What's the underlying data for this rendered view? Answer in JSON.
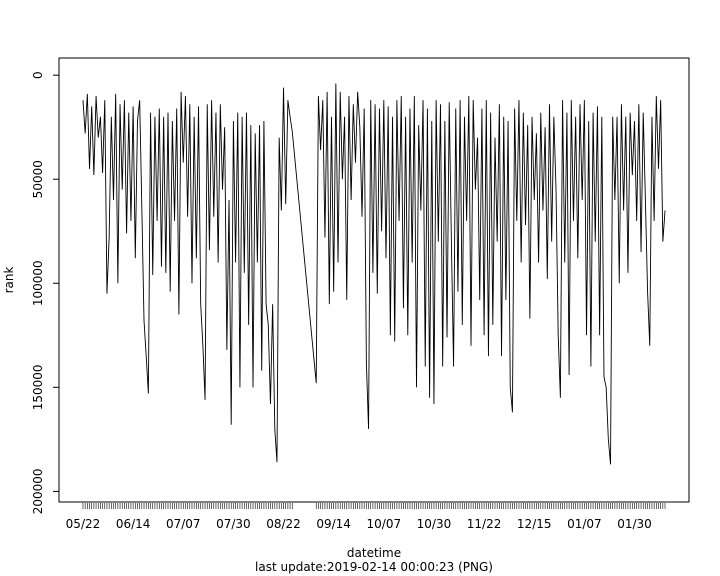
{
  "chart_data": {
    "type": "line",
    "x_label": "datetime",
    "y_label": "rank",
    "caption": "last update:2019-02-14 00:00:23 (PNG)",
    "x": [
      "05/22",
      "05/23",
      "05/24",
      "05/25",
      "05/26",
      "05/27",
      "05/28",
      "05/29",
      "05/30",
      "05/31",
      "06/01",
      "06/02",
      "06/03",
      "06/04",
      "06/05",
      "06/06",
      "06/07",
      "06/08",
      "06/09",
      "06/10",
      "06/11",
      "06/12",
      "06/13",
      "06/14",
      "06/15",
      "06/16",
      "06/17",
      "06/18",
      "06/19",
      "06/20",
      "06/21",
      "06/22",
      "06/23",
      "06/24",
      "06/25",
      "06/26",
      "06/27",
      "06/28",
      "06/29",
      "06/30",
      "07/01",
      "07/02",
      "07/03",
      "07/04",
      "07/05",
      "07/06",
      "07/07",
      "07/08",
      "07/09",
      "07/10",
      "07/11",
      "07/12",
      "07/13",
      "07/14",
      "07/15",
      "07/16",
      "07/17",
      "07/18",
      "07/19",
      "07/20",
      "07/21",
      "07/22",
      "07/23",
      "07/24",
      "07/25",
      "07/26",
      "07/27",
      "07/28",
      "07/29",
      "07/30",
      "07/31",
      "08/01",
      "08/02",
      "08/03",
      "08/04",
      "08/05",
      "08/06",
      "08/07",
      "08/08",
      "08/09",
      "08/10",
      "08/11",
      "08/12",
      "08/13",
      "08/14",
      "08/15",
      "08/16",
      "08/17",
      "08/18",
      "08/19",
      "08/20",
      "08/21",
      "08/22",
      "08/23",
      "08/24",
      "08/25",
      "08/26",
      "09/06",
      "09/07",
      "09/08",
      "09/09",
      "09/10",
      "09/11",
      "09/12",
      "09/13",
      "09/14",
      "09/15",
      "09/16",
      "09/17",
      "09/18",
      "09/19",
      "09/20",
      "09/21",
      "09/22",
      "09/23",
      "09/24",
      "09/25",
      "09/26",
      "09/27",
      "09/28",
      "09/29",
      "09/30",
      "10/01",
      "10/02",
      "10/03",
      "10/04",
      "10/05",
      "10/06",
      "10/07",
      "10/08",
      "10/09",
      "10/10",
      "10/11",
      "10/12",
      "10/13",
      "10/14",
      "10/15",
      "10/16",
      "10/17",
      "10/18",
      "10/19",
      "10/20",
      "10/21",
      "10/22",
      "10/23",
      "10/24",
      "10/25",
      "10/26",
      "10/27",
      "10/28",
      "10/29",
      "10/30",
      "10/31",
      "11/01",
      "11/02",
      "11/03",
      "11/04",
      "11/05",
      "11/06",
      "11/07",
      "11/08",
      "11/09",
      "11/10",
      "11/11",
      "11/12",
      "11/13",
      "11/14",
      "11/15",
      "11/16",
      "11/17",
      "11/18",
      "11/19",
      "11/20",
      "11/21",
      "11/22",
      "11/23",
      "11/24",
      "11/25",
      "11/26",
      "11/27",
      "11/28",
      "11/29",
      "11/30",
      "12/01",
      "12/02",
      "12/03",
      "12/04",
      "12/05",
      "12/06",
      "12/07",
      "12/08",
      "12/09",
      "12/10",
      "12/11",
      "12/12",
      "12/13",
      "12/14",
      "12/15",
      "12/16",
      "12/17",
      "12/18",
      "12/19",
      "12/20",
      "12/21",
      "12/22",
      "12/23",
      "12/24",
      "12/25",
      "12/26",
      "12/27",
      "12/28",
      "12/29",
      "12/30",
      "12/31",
      "01/01",
      "01/02",
      "01/03",
      "01/04",
      "01/05",
      "01/06",
      "01/07",
      "01/08",
      "01/09",
      "01/10",
      "01/11",
      "01/12",
      "01/13",
      "01/14",
      "01/15",
      "01/16",
      "01/17",
      "01/18",
      "01/19",
      "01/20",
      "01/21",
      "01/22",
      "01/23",
      "01/24",
      "01/25",
      "01/26",
      "01/27",
      "01/28",
      "01/29",
      "01/30",
      "01/31",
      "02/01",
      "02/02",
      "02/03",
      "02/04",
      "02/05",
      "02/06",
      "02/07",
      "02/08",
      "02/09",
      "02/10",
      "02/11",
      "02/12",
      "02/13"
    ],
    "values": [
      12000,
      28000,
      9000,
      45000,
      15000,
      48000,
      10000,
      30000,
      20000,
      47000,
      12000,
      105000,
      78000,
      20000,
      60000,
      9000,
      100000,
      14000,
      55000,
      12000,
      76000,
      18000,
      70000,
      15000,
      88000,
      22000,
      12000,
      64000,
      118000,
      135000,
      153000,
      18000,
      96000,
      20000,
      70000,
      16000,
      92000,
      20000,
      95000,
      18000,
      104000,
      22000,
      70000,
      16000,
      115000,
      8000,
      42000,
      10000,
      68000,
      14000,
      100000,
      20000,
      88000,
      15000,
      110000,
      130000,
      156000,
      14000,
      84000,
      12000,
      68000,
      18000,
      90000,
      14000,
      55000,
      25000,
      132000,
      60000,
      168000,
      22000,
      90000,
      18000,
      150000,
      20000,
      95000,
      18000,
      120000,
      24000,
      150000,
      28000,
      90000,
      24000,
      142000,
      22000,
      110000,
      120000,
      158000,
      110000,
      170000,
      186000,
      30000,
      65000,
      6000,
      62000,
      12000,
      20000,
      27000,
      148000,
      10000,
      36000,
      12000,
      78000,
      8000,
      110000,
      20000,
      104000,
      4000,
      90000,
      8000,
      50000,
      20000,
      108000,
      10000,
      60000,
      14000,
      42000,
      8000,
      25000,
      68000,
      16000,
      138000,
      170000,
      12000,
      95000,
      14000,
      105000,
      16000,
      75000,
      12000,
      88000,
      15000,
      125000,
      20000,
      128000,
      12000,
      70000,
      10000,
      112000,
      20000,
      125000,
      16000,
      90000,
      10000,
      150000,
      24000,
      65000,
      12000,
      140000,
      16000,
      155000,
      22000,
      158000,
      12000,
      80000,
      14000,
      140000,
      22000,
      126000,
      13000,
      80000,
      140000,
      16000,
      104000,
      12000,
      120000,
      20000,
      70000,
      10000,
      130000,
      12000,
      55000,
      30000,
      108000,
      16000,
      125000,
      12000,
      135000,
      18000,
      120000,
      30000,
      80000,
      14000,
      135000,
      20000,
      108000,
      22000,
      150000,
      162000,
      16000,
      70000,
      12000,
      90000,
      18000,
      72000,
      24000,
      117000,
      20000,
      60000,
      28000,
      90000,
      18000,
      65000,
      25000,
      98000,
      14000,
      80000,
      20000,
      55000,
      125000,
      155000,
      12000,
      90000,
      18000,
      144000,
      12000,
      70000,
      20000,
      88000,
      14000,
      60000,
      12000,
      125000,
      22000,
      140000,
      18000,
      80000,
      15000,
      125000,
      20000,
      145000,
      150000,
      175000,
      187000,
      20000,
      60000,
      20000,
      100000,
      14000,
      65000,
      20000,
      95000,
      18000,
      48000,
      22000,
      70000,
      14000,
      85000,
      18000,
      60000,
      104000,
      130000,
      20000,
      70000,
      10000,
      45000,
      12000,
      80000,
      65000
    ],
    "color": "#000000",
    "xlim": [
      "05/11",
      "02/24"
    ],
    "xticks": [
      "05/22",
      "06/14",
      "07/07",
      "07/30",
      "08/22",
      "09/14",
      "10/07",
      "10/30",
      "11/22",
      "12/15",
      "01/07",
      "01/30"
    ],
    "ylim": [
      205100,
      -8250
    ],
    "yticks": [
      0,
      50000,
      100000,
      150000,
      200000
    ]
  }
}
